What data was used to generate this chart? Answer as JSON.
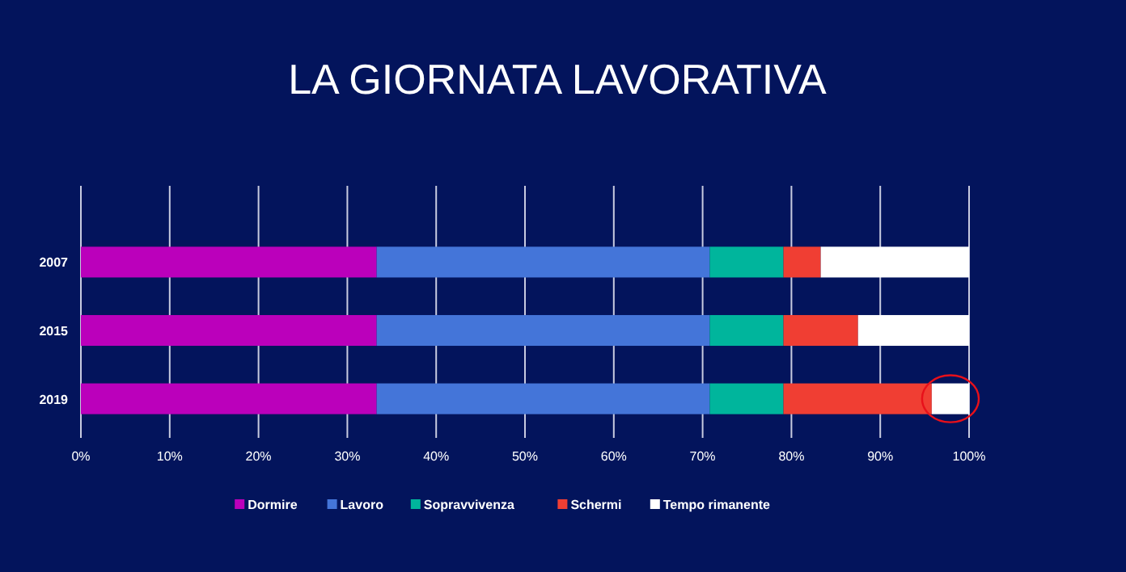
{
  "chart_data": {
    "type": "bar",
    "orientation": "horizontal",
    "stacked": true,
    "title": "LA GIORNATA LAVORATIVA",
    "categories": [
      "2007",
      "2015",
      "2019"
    ],
    "series": [
      {
        "name": "Dormire",
        "color": "#bb00bb",
        "values": [
          33.3,
          33.3,
          33.3
        ]
      },
      {
        "name": "Lavoro",
        "color": "#4475d9",
        "values": [
          37.5,
          37.5,
          37.5
        ]
      },
      {
        "name": "Sopravvivenza",
        "color": "#00b59c",
        "values": [
          8.3,
          8.3,
          8.3
        ]
      },
      {
        "name": "Schermi",
        "color": "#f03e33",
        "values": [
          4.2,
          8.4,
          16.7
        ]
      },
      {
        "name": "Tempo rimanente",
        "color": "#ffffff",
        "values": [
          16.7,
          12.5,
          4.2
        ]
      }
    ],
    "xlim": [
      0,
      100
    ],
    "xticks": [
      {
        "value": 0,
        "label": "0%"
      },
      {
        "value": 10,
        "label": "10%"
      },
      {
        "value": 20,
        "label": "20%"
      },
      {
        "value": 30,
        "label": "30%"
      },
      {
        "value": 40,
        "label": "40%"
      },
      {
        "value": 50,
        "label": "50%"
      },
      {
        "value": 60,
        "label": "60%"
      },
      {
        "value": 70,
        "label": "70%"
      },
      {
        "value": 80,
        "label": "80%"
      },
      {
        "value": 90,
        "label": "90%"
      },
      {
        "value": 100,
        "label": "100%"
      }
    ],
    "grid": "x",
    "legend": "bottom"
  }
}
